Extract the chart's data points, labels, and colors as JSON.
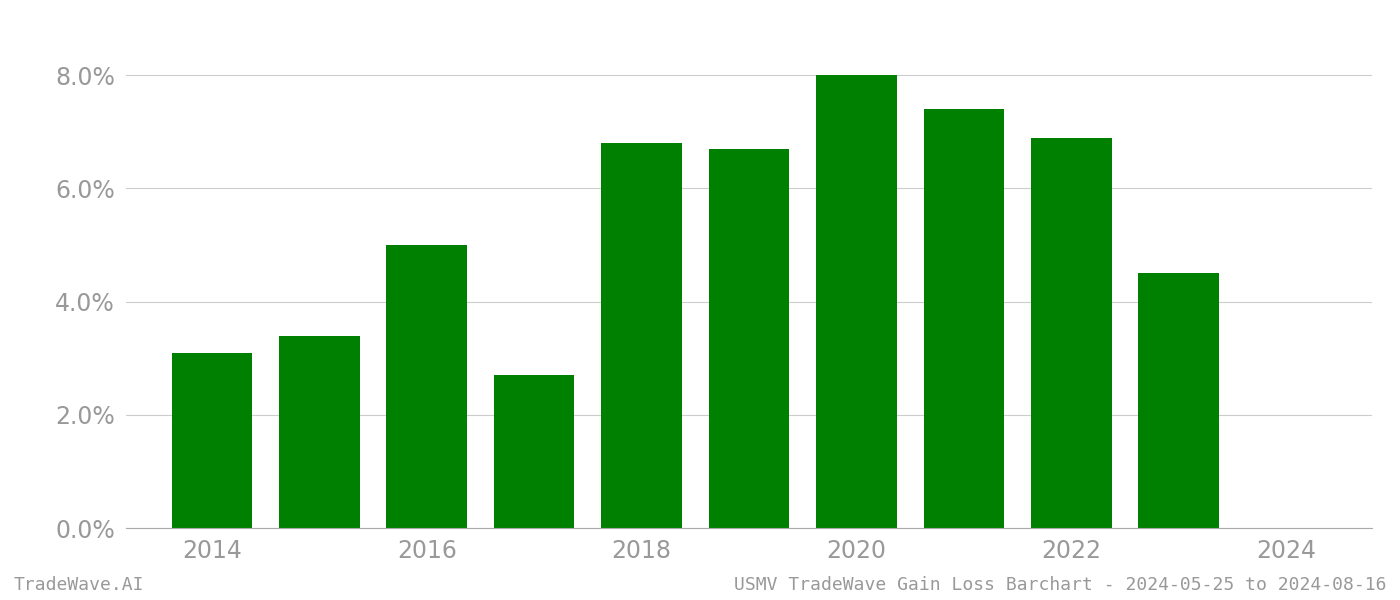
{
  "years": [
    2014,
    2015,
    2016,
    2017,
    2018,
    2019,
    2020,
    2021,
    2022,
    2023
  ],
  "values": [
    0.031,
    0.034,
    0.05,
    0.027,
    0.068,
    0.067,
    0.08,
    0.074,
    0.069,
    0.045
  ],
  "bar_color": "#008000",
  "background_color": "#ffffff",
  "ylim": [
    0,
    0.088
  ],
  "yticks": [
    0.0,
    0.02,
    0.04,
    0.06,
    0.08
  ],
  "ytick_labels": [
    "0.0%",
    "2.0%",
    "4.0%",
    "6.0%",
    "8.0%"
  ],
  "xtick_labels": [
    "2014",
    "2016",
    "2018",
    "2020",
    "2022",
    "2024"
  ],
  "xtick_positions": [
    2014,
    2016,
    2018,
    2020,
    2022,
    2024
  ],
  "footer_left": "TradeWave.AI",
  "footer_right": "USMV TradeWave Gain Loss Barchart - 2024-05-25 to 2024-08-16",
  "grid_color": "#cccccc",
  "tick_color": "#999999",
  "footer_color": "#999999",
  "bar_width": 0.75,
  "ytick_fontsize": 17,
  "xtick_fontsize": 17,
  "footer_fontsize": 13
}
